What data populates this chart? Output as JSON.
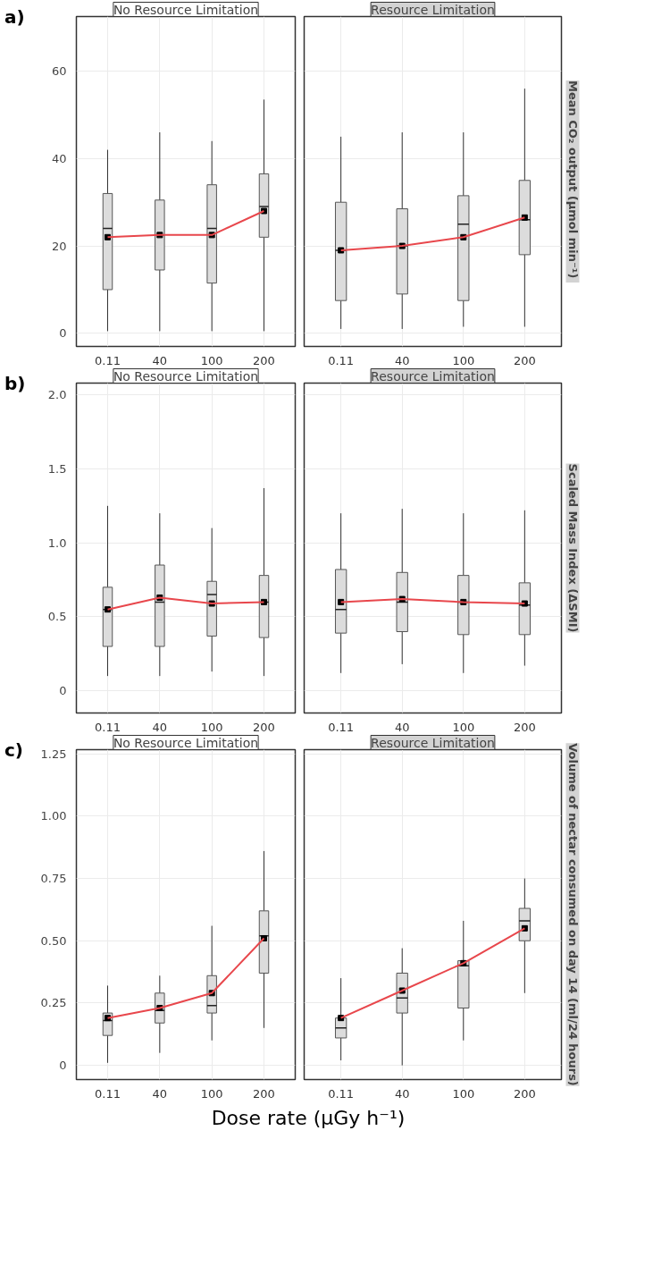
{
  "chart_data": [
    {
      "type": "box",
      "title": "No Resource Limitation",
      "annotations": [
        "a)"
      ],
      "categories": [
        "0.11",
        "40",
        "100",
        "200"
      ],
      "boxes": [
        {
          "low": 0.5,
          "q1": 10,
          "median": 24,
          "q3": 32,
          "high": 42,
          "mean": 22
        },
        {
          "low": 0.5,
          "q1": 14.5,
          "median": 22.5,
          "q3": 30.5,
          "high": 46,
          "mean": 22.5
        },
        {
          "low": 0.5,
          "q1": 11.5,
          "median": 24,
          "q3": 34,
          "high": 44,
          "mean": 22.5
        },
        {
          "low": 0.5,
          "q1": 22,
          "median": 29,
          "q3": 36.5,
          "high": 53.5,
          "mean": 28
        }
      ],
      "series": [
        {
          "type": "line",
          "color": "#e8474c",
          "values": [
            22,
            22.5,
            22.5,
            28
          ]
        }
      ],
      "ylim": [
        -3,
        72.5
      ],
      "yticks": [
        0,
        20,
        40,
        60
      ],
      "grid": true
    },
    {
      "type": "box",
      "title": "Resource Limitation",
      "ylabel": "Mean CO₂ output  (µmol min⁻¹)",
      "categories": [
        "0.11",
        "40",
        "100",
        "200"
      ],
      "boxes": [
        {
          "low": 1,
          "q1": 7.5,
          "median": 19,
          "q3": 30,
          "high": 45,
          "mean": 19
        },
        {
          "low": 1,
          "q1": 9,
          "median": 20,
          "q3": 28.5,
          "high": 46,
          "mean": 20
        },
        {
          "low": 1.5,
          "q1": 7.5,
          "median": 25,
          "q3": 31.5,
          "high": 46,
          "mean": 22
        },
        {
          "low": 1.5,
          "q1": 18,
          "median": 26,
          "q3": 35,
          "high": 56,
          "mean": 26.5
        }
      ],
      "series": [
        {
          "type": "line",
          "color": "#e8474c",
          "values": [
            19,
            20,
            22,
            26.5
          ]
        }
      ],
      "ylim": [
        -3,
        72.5
      ],
      "yticks": [
        0,
        20,
        40,
        60
      ],
      "tick_labels": "x",
      "grid": true
    },
    {
      "type": "box",
      "title": "No Resource Limitation",
      "annotations": [
        "b)"
      ],
      "categories": [
        "0.11",
        "40",
        "100",
        "200"
      ],
      "boxes": [
        {
          "low": 0.1,
          "q1": 0.3,
          "median": 0.55,
          "q3": 0.7,
          "high": 1.25,
          "mean": 0.55
        },
        {
          "low": 0.1,
          "q1": 0.3,
          "median": 0.6,
          "q3": 0.85,
          "high": 1.2,
          "mean": 0.63
        },
        {
          "low": 0.13,
          "q1": 0.37,
          "median": 0.65,
          "q3": 0.74,
          "high": 1.1,
          "mean": 0.59
        },
        {
          "low": 0.1,
          "q1": 0.36,
          "median": 0.6,
          "q3": 0.78,
          "high": 1.37,
          "mean": 0.6
        }
      ],
      "series": [
        {
          "type": "line",
          "color": "#e8474c",
          "values": [
            0.55,
            0.63,
            0.59,
            0.6
          ]
        }
      ],
      "ylim": [
        -0.15,
        2.08
      ],
      "yticks": [
        {
          "value": 0,
          "label": "0"
        },
        {
          "value": 0.5,
          "label": "0.5"
        },
        {
          "value": 1,
          "label": "1.0"
        },
        {
          "value": 1.5,
          "label": "1.5"
        },
        {
          "value": 2,
          "label": "2.0"
        }
      ],
      "grid": true
    },
    {
      "type": "box",
      "title": "Resource Limitation",
      "ylabel": "Scaled Mass Index (ΔSMI)",
      "categories": [
        "0.11",
        "40",
        "100",
        "200"
      ],
      "boxes": [
        {
          "low": 0.12,
          "q1": 0.39,
          "median": 0.55,
          "q3": 0.82,
          "high": 1.2,
          "mean": 0.6
        },
        {
          "low": 0.18,
          "q1": 0.4,
          "median": 0.6,
          "q3": 0.8,
          "high": 1.23,
          "mean": 0.62
        },
        {
          "low": 0.12,
          "q1": 0.38,
          "median": 0.6,
          "q3": 0.78,
          "high": 1.2,
          "mean": 0.6
        },
        {
          "low": 0.17,
          "q1": 0.38,
          "median": 0.58,
          "q3": 0.73,
          "high": 1.22,
          "mean": 0.59
        }
      ],
      "series": [
        {
          "type": "line",
          "color": "#e8474c",
          "values": [
            0.6,
            0.62,
            0.6,
            0.59
          ]
        }
      ],
      "ylim": [
        -0.15,
        2.08
      ],
      "yticks": [
        0,
        0.5,
        1,
        1.5,
        2
      ],
      "tick_labels": "x",
      "grid": true
    },
    {
      "type": "box",
      "title": "No Resource Limitation",
      "annotations": [
        "c)"
      ],
      "categories": [
        "0.11",
        "40",
        "100",
        "200"
      ],
      "boxes": [
        {
          "low": 0.01,
          "q1": 0.12,
          "median": 0.18,
          "q3": 0.21,
          "high": 0.32,
          "mean": 0.19
        },
        {
          "low": 0.05,
          "q1": 0.17,
          "median": 0.22,
          "q3": 0.29,
          "high": 0.36,
          "mean": 0.23
        },
        {
          "low": 0.1,
          "q1": 0.21,
          "median": 0.24,
          "q3": 0.36,
          "high": 0.56,
          "mean": 0.29
        },
        {
          "low": 0.15,
          "q1": 0.37,
          "median": 0.52,
          "q3": 0.62,
          "high": 0.86,
          "mean": 0.51
        }
      ],
      "series": [
        {
          "type": "line",
          "color": "#e8474c",
          "values": [
            0.19,
            0.23,
            0.29,
            0.51
          ]
        }
      ],
      "ylim": [
        -0.057,
        1.267
      ],
      "yticks": [
        {
          "value": 0,
          "label": "0"
        },
        {
          "value": 0.25,
          "label": "0.25"
        },
        {
          "value": 0.5,
          "label": "0.50"
        },
        {
          "value": 0.75,
          "label": "0.75"
        },
        {
          "value": 1,
          "label": "1.00"
        },
        {
          "value": 1.25,
          "label": "1.25"
        }
      ],
      "grid": true
    },
    {
      "type": "box",
      "title": "Resource Limitation",
      "ylabel": "Volume of nectar consumed on day 14 (ml/24 hours)",
      "xlabel": "Dose rate (µGy h⁻¹)",
      "categories": [
        "0.11",
        "40",
        "100",
        "200"
      ],
      "boxes": [
        {
          "low": 0.02,
          "q1": 0.11,
          "median": 0.15,
          "q3": 0.19,
          "high": 0.35,
          "mean": 0.19
        },
        {
          "low": 0.0,
          "q1": 0.21,
          "median": 0.27,
          "q3": 0.37,
          "high": 0.47,
          "mean": 0.3
        },
        {
          "low": 0.1,
          "q1": 0.23,
          "median": 0.4,
          "q3": 0.42,
          "high": 0.58,
          "mean": 0.41
        },
        {
          "low": 0.29,
          "q1": 0.5,
          "median": 0.58,
          "q3": 0.63,
          "high": 0.75,
          "mean": 0.55
        }
      ],
      "series": [
        {
          "type": "line",
          "color": "#e8474c",
          "values": [
            0.19,
            0.3,
            0.41,
            0.55
          ]
        }
      ],
      "ylim": [
        -0.057,
        1.267
      ],
      "yticks": [
        0,
        0.25,
        0.5,
        0.75,
        1,
        1.25
      ],
      "tick_labels": "x",
      "grid": true
    }
  ]
}
